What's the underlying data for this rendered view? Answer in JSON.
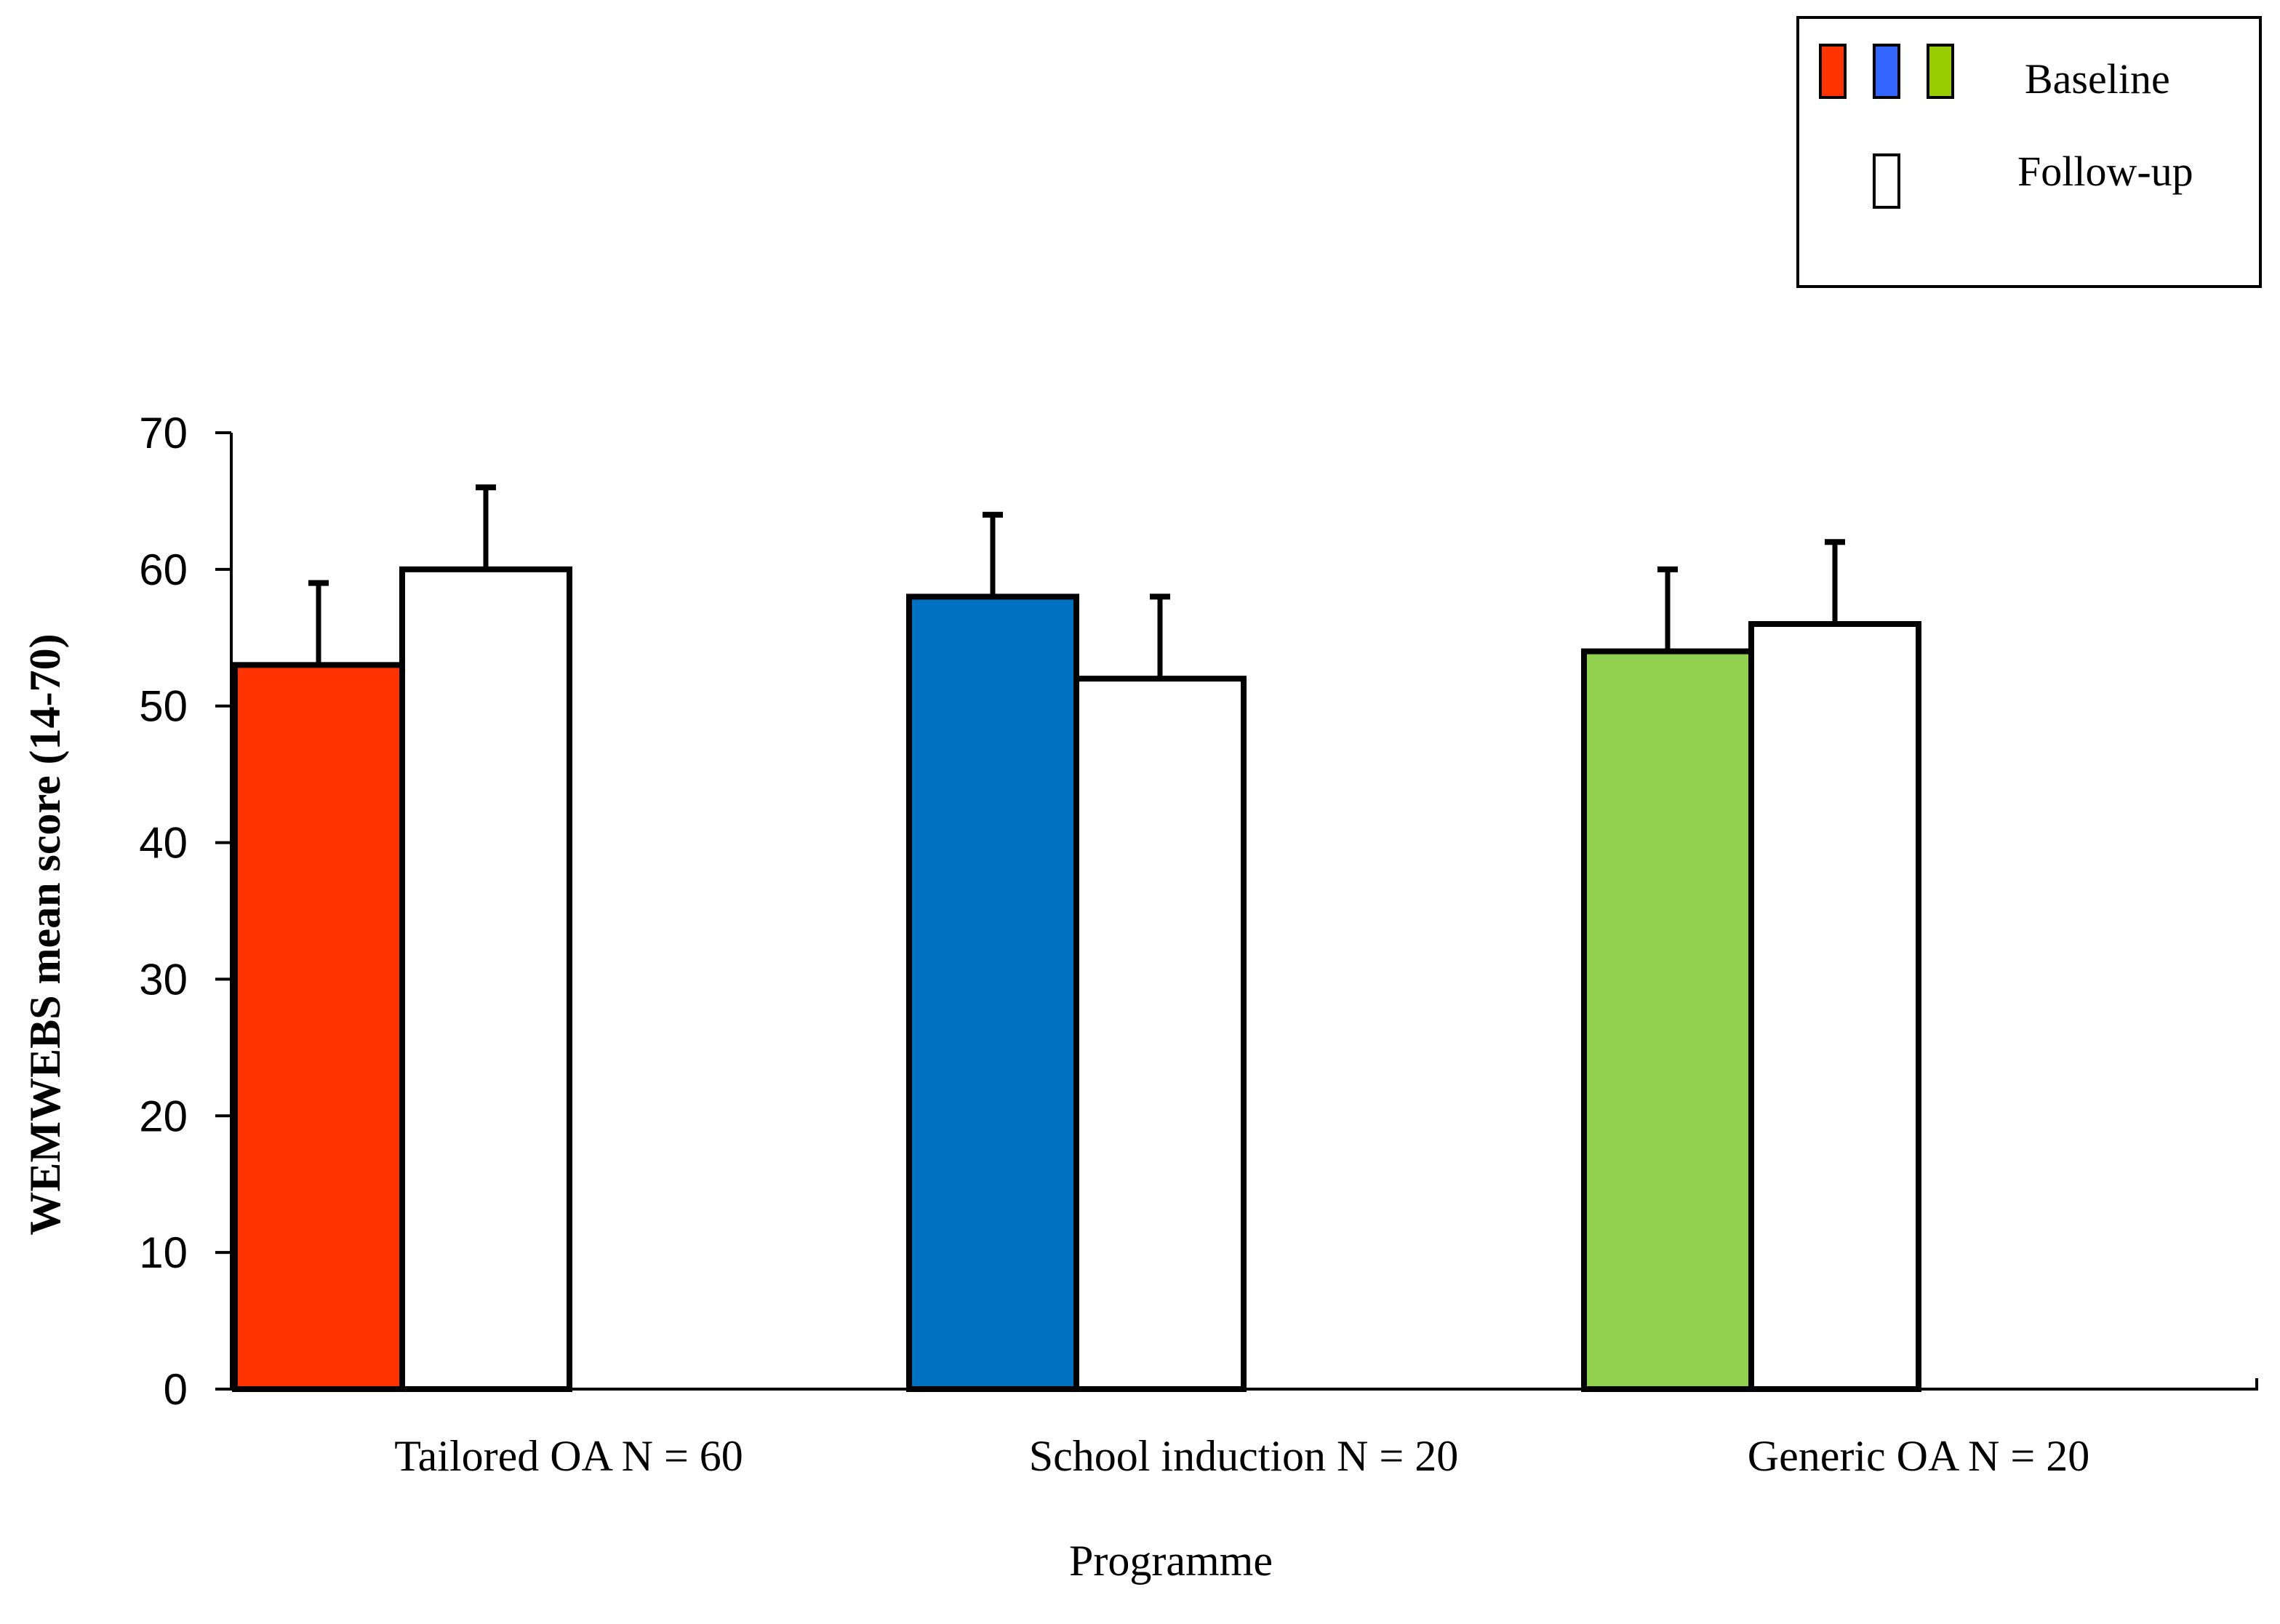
{
  "chart_data": {
    "type": "bar",
    "title": "",
    "xlabel": "Programme",
    "ylabel": "WEMWEBS mean score (14-70)",
    "ylim": [
      0,
      70
    ],
    "yticks": [
      "0",
      "10",
      "20",
      "30",
      "40",
      "50",
      "60",
      "70"
    ],
    "grid": false,
    "legend_position": "top-right",
    "categories": [
      "Tailored OA N = 60",
      "School induction N = 20",
      "Generic OA N = 20"
    ],
    "category_colors": [
      "#ff3300",
      "#0070c0",
      "#92d050"
    ],
    "series": [
      {
        "name": "Baseline",
        "values": [
          53,
          58,
          54
        ],
        "errors": [
          6,
          6,
          6
        ]
      },
      {
        "name": "Follow-up",
        "values": [
          60,
          52,
          56
        ],
        "errors": [
          6,
          6,
          6
        ],
        "color": "#ffffff"
      }
    ],
    "legend": {
      "baseline_label": "Baseline",
      "followup_label": "Follow-up",
      "baseline_swatch_colors": [
        "#ff3300",
        "#3366ff",
        "#99cc00"
      ],
      "followup_swatch_color": "#ffffff"
    }
  }
}
